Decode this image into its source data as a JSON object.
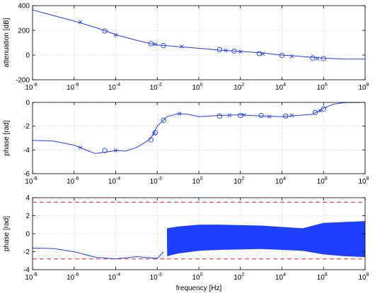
{
  "colors": {
    "curve": "#1f3fff",
    "reference": "#ff2020",
    "grid": "#b0b0b0",
    "axes": "#000000"
  },
  "chart_data": [
    {
      "type": "line",
      "xlabel": "",
      "ylabel": "attenuation [dB]",
      "xscale": "log",
      "xlim": [
        1e-08,
        100000000.0
      ],
      "ylim": [
        -200,
        400
      ],
      "grid": true,
      "xtick_exponents": [
        -8,
        -6,
        -4,
        -2,
        0,
        2,
        4,
        6,
        8
      ],
      "yticks": [
        -200,
        0,
        200,
        400
      ],
      "series": [
        {
          "curve": [
            [
              1e-08,
              365
            ],
            [
              1e-07,
              320
            ],
            [
              1e-06,
              275
            ],
            [
              1e-05,
              225
            ],
            [
              3e-05,
              198
            ],
            [
              0.0001,
              165
            ],
            [
              0.001,
              120
            ],
            [
              0.005,
              92
            ],
            [
              0.01,
              82
            ],
            [
              0.03,
              76
            ],
            [
              0.1,
              68
            ],
            [
              1,
              55
            ],
            [
              10,
              40
            ],
            [
              100.0,
              30
            ],
            [
              1000.0,
              18
            ],
            [
              10000.0,
              0
            ],
            [
              100000.0,
              -12
            ],
            [
              1000000.0,
              -25
            ],
            [
              10000000.0,
              -32
            ],
            [
              100000000.0,
              -33
            ]
          ]
        }
      ],
      "zeros": [
        [
          3e-05,
          195
        ],
        [
          0.005,
          92
        ],
        [
          0.02,
          77
        ],
        [
          10,
          44
        ],
        [
          50,
          32
        ],
        [
          800,
          12
        ],
        [
          10000.0,
          -3
        ],
        [
          300000.0,
          -24
        ],
        [
          1000000.0,
          -28
        ]
      ],
      "poles": [
        [
          2e-06,
          268
        ],
        [
          0.0001,
          162
        ],
        [
          0.008,
          88
        ],
        [
          0.15,
          70
        ],
        [
          20,
          38
        ],
        [
          100,
          28
        ],
        [
          1200,
          10
        ],
        [
          30000.0,
          -10
        ],
        [
          500000.0,
          -27
        ]
      ]
    },
    {
      "type": "line",
      "xlabel": "",
      "ylabel": "phase [rad]",
      "xscale": "log",
      "xlim": [
        1e-08,
        100000000.0
      ],
      "ylim": [
        -6,
        0
      ],
      "grid": true,
      "xtick_exponents": [
        -8,
        -6,
        -4,
        -2,
        0,
        2,
        4,
        6,
        8
      ],
      "yticks": [
        -6,
        -4,
        -2,
        0
      ],
      "series": [
        {
          "curve": [
            [
              1e-08,
              -3.2
            ],
            [
              1e-07,
              -3.25
            ],
            [
              1e-06,
              -3.6
            ],
            [
              1e-05,
              -4.3
            ],
            [
              3e-05,
              -4.2
            ],
            [
              0.0001,
              -4.05
            ],
            [
              0.0003,
              -4.1
            ],
            [
              0.001,
              -3.8
            ],
            [
              0.003,
              -3.3
            ],
            [
              0.005,
              -3.0
            ],
            [
              0.01,
              -2.0
            ],
            [
              0.03,
              -1.2
            ],
            [
              0.1,
              -0.95
            ],
            [
              0.3,
              -1.0
            ],
            [
              1,
              -1.2
            ],
            [
              10,
              -1.1
            ],
            [
              100,
              -1.05
            ],
            [
              1000,
              -1.15
            ],
            [
              10000.0,
              -1.2
            ],
            [
              300000.0,
              -1.0
            ],
            [
              1000000.0,
              -0.5
            ],
            [
              3000000.0,
              -0.15
            ],
            [
              10000000.0,
              -0.02
            ],
            [
              100000000.0,
              0
            ]
          ]
        }
      ],
      "zeros": [
        [
          3e-05,
          -4.05
        ],
        [
          0.005,
          -3.15
        ],
        [
          0.008,
          -2.55
        ],
        [
          0.02,
          -1.5
        ],
        [
          10,
          -1.15
        ],
        [
          100,
          -1.1
        ],
        [
          1000,
          -1.1
        ],
        [
          15000.0,
          -1.15
        ],
        [
          400000.0,
          -0.85
        ],
        [
          1000000.0,
          -0.55
        ]
      ],
      "poles": [
        [
          2e-06,
          -3.8
        ],
        [
          0.0001,
          -4.05
        ],
        [
          0.007,
          -2.65
        ],
        [
          0.12,
          -0.95
        ],
        [
          30,
          -1.1
        ],
        [
          150,
          -1.05
        ],
        [
          2500,
          -1.2
        ],
        [
          30000.0,
          -1.1
        ],
        [
          700000.0,
          -0.7
        ]
      ]
    },
    {
      "type": "line",
      "xlabel": "frequency [Hz]",
      "ylabel": "phase [rad]",
      "xscale": "log",
      "xlim": [
        1e-08,
        100000000.0
      ],
      "ylim": [
        -4,
        4
      ],
      "grid": true,
      "xtick_exponents": [
        -8,
        -6,
        -4,
        -2,
        0,
        2,
        4,
        6,
        8
      ],
      "yticks": [
        -4,
        -2,
        0,
        2,
        4
      ],
      "reference_lines": [
        3.5,
        -2.8
      ],
      "series": [
        {
          "curve": [
            [
              1e-08,
              -1.6
            ],
            [
              1e-07,
              -1.65
            ],
            [
              1e-06,
              -2.0
            ],
            [
              1e-05,
              -2.6
            ],
            [
              0.0001,
              -2.8
            ],
            [
              0.001,
              -2.55
            ],
            [
              0.01,
              -2.75
            ],
            [
              0.02,
              -2.0
            ]
          ]
        }
      ],
      "noise_band": [
        [
          0.03,
          -2.5,
          0.6
        ],
        [
          0.1,
          -2.2,
          0.8
        ],
        [
          1,
          -1.9,
          1.0
        ],
        [
          10,
          -1.8,
          1.0
        ],
        [
          1000.0,
          -1.7,
          0.9
        ],
        [
          100000.0,
          -1.9,
          0.6
        ],
        [
          1000000.0,
          -2.3,
          1.2
        ],
        [
          10000000.0,
          -2.5,
          1.3
        ],
        [
          100000000.0,
          -2.6,
          1.4
        ]
      ]
    }
  ]
}
